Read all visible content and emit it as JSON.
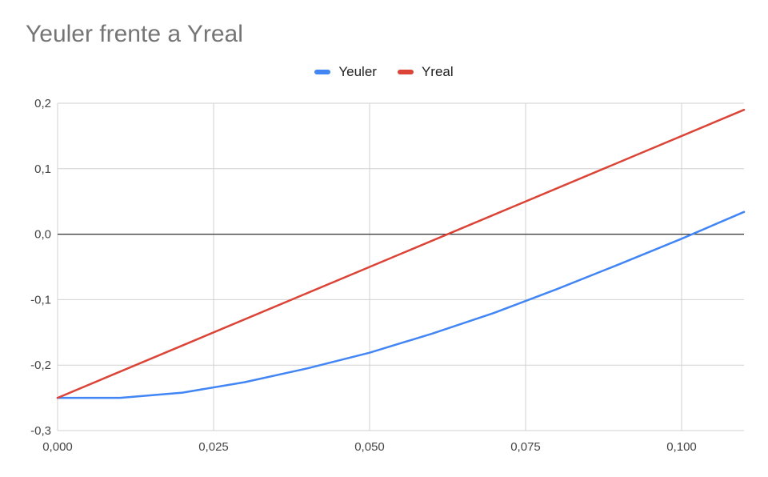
{
  "chart_data": {
    "type": "line",
    "title": "Yeuler frente a Yreal",
    "xlabel": "",
    "ylabel": "",
    "xlim": [
      0,
      0.11
    ],
    "ylim": [
      -0.3,
      0.2
    ],
    "x_ticks": [
      0,
      0.025,
      0.05,
      0.075,
      0.1
    ],
    "x_tick_labels": [
      "0,000",
      "0,025",
      "0,050",
      "0,075",
      "0,100"
    ],
    "y_ticks": [
      0.2,
      0.1,
      0.0,
      -0.1,
      -0.2,
      -0.3
    ],
    "y_tick_labels": [
      "0,2",
      "0,1",
      "0,0",
      "-0,1",
      "-0,2",
      "-0,3"
    ],
    "grid": true,
    "legend_position": "top-center",
    "series": [
      {
        "name": "Yeuler",
        "color": "#4285F4",
        "x": [
          0,
          0.01,
          0.02,
          0.03,
          0.04,
          0.05,
          0.06,
          0.07,
          0.08,
          0.09,
          0.1,
          0.11
        ],
        "y": [
          -0.25,
          -0.25,
          -0.242,
          -0.226,
          -0.205,
          -0.181,
          -0.152,
          -0.12,
          -0.084,
          -0.046,
          -0.007,
          0.034
        ]
      },
      {
        "name": "Yreal",
        "color": "#DB4437",
        "x": [
          0,
          0.11
        ],
        "y": [
          -0.25,
          0.19
        ]
      }
    ]
  }
}
